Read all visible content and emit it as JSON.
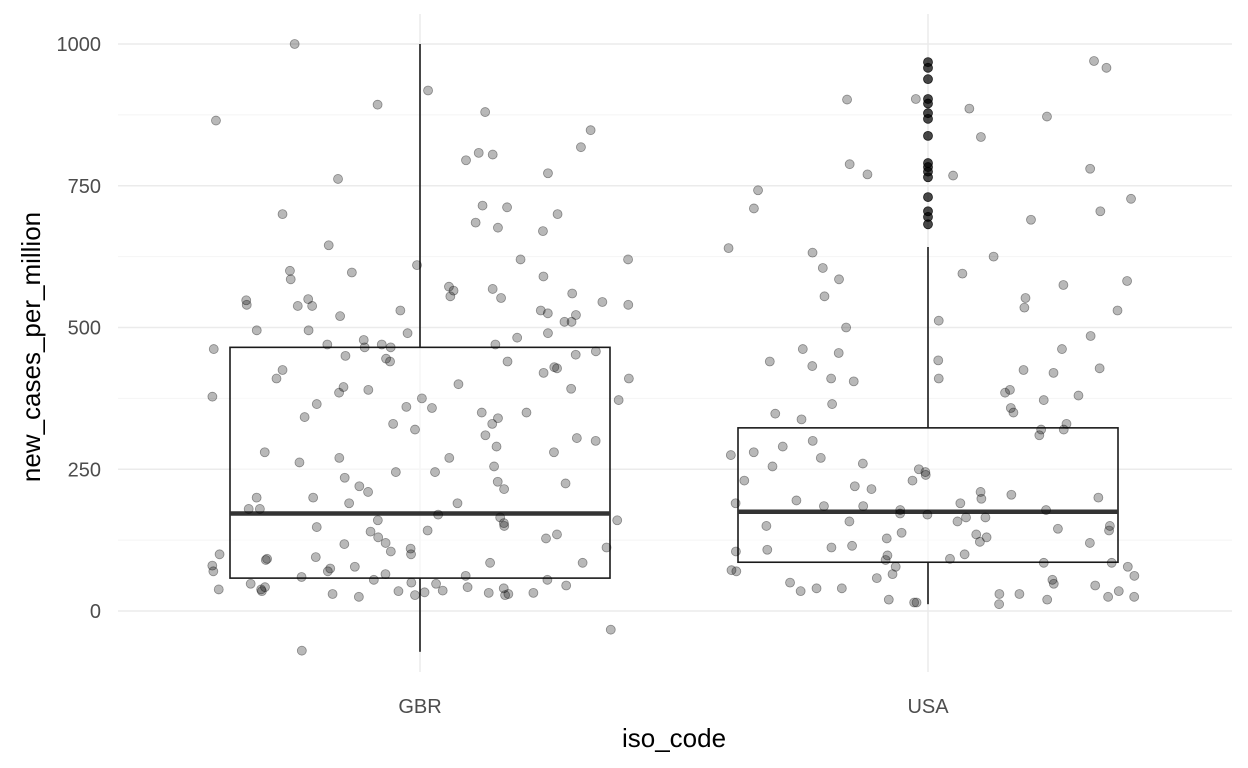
{
  "chart_data": {
    "type": "boxplot",
    "title": "",
    "xlabel": "iso_code",
    "ylabel": "new_cases_per_million",
    "ylim": [
      -75,
      1020
    ],
    "yticks": [
      0,
      250,
      500,
      750,
      1000
    ],
    "y_minor": [
      125,
      375,
      625,
      875
    ],
    "categories": [
      "GBR",
      "USA"
    ],
    "grid": true,
    "legend": "none",
    "boxes": [
      {
        "category": "GBR",
        "q1": 58,
        "median": 172,
        "q3": 465,
        "whisker_low": -72,
        "whisker_high": 1000,
        "outliers": []
      },
      {
        "category": "USA",
        "q1": 86,
        "median": 175,
        "q3": 323,
        "whisker_low": 12,
        "whisker_high": 642,
        "outliers": [
          968,
          958,
          938,
          903,
          895,
          878,
          868,
          838,
          790,
          783,
          775,
          765,
          730,
          705,
          695,
          682
        ]
      }
    ],
    "jitter": [
      {
        "category": "GBR",
        "values": [
          880,
          762,
          685,
          540,
          470,
          805,
          700,
          818,
          712,
          700,
          620,
          597,
          590,
          585,
          565,
          550,
          538,
          530,
          522,
          510,
          495,
          490,
          482,
          478,
          470,
          465,
          458,
          452,
          445,
          440,
          430,
          425,
          410,
          395,
          390,
          375,
          372,
          360,
          350,
          342,
          330,
          305,
          280,
          270,
          245,
          225,
          215,
          200,
          190,
          180,
          165,
          160,
          155,
          148,
          140,
          130,
          120,
          112,
          105,
          100,
          95,
          90,
          85,
          80,
          75,
          70,
          65,
          60,
          55,
          50,
          48,
          45,
          42,
          40,
          38,
          36,
          35,
          33,
          32,
          30,
          28,
          -33,
          1000,
          918,
          848,
          795,
          865,
          808,
          715,
          893,
          772,
          676,
          645,
          670,
          620,
          610,
          600,
          572,
          568,
          560,
          555,
          552,
          548,
          545,
          540,
          538,
          530,
          525,
          520,
          510,
          495,
          490,
          470,
          465,
          462,
          450,
          440,
          428,
          420,
          410,
          400,
          392,
          385,
          378,
          365,
          358,
          350,
          340,
          330,
          320,
          310,
          300,
          290,
          280,
          270,
          262,
          255,
          245,
          235,
          228,
          220,
          210,
          200,
          190,
          180,
          170,
          160,
          150,
          142,
          135,
          128,
          118,
          110,
          100,
          92,
          85,
          78,
          70,
          62,
          55,
          48,
          42,
          38,
          35,
          32,
          30,
          28,
          25,
          -70
        ]
      },
      {
        "category": "USA",
        "values": [
          903,
          958,
          788,
          742,
          780,
          770,
          727,
          632,
          605,
          595,
          582,
          555,
          552,
          500,
          462,
          455,
          442,
          425,
          410,
          390,
          385,
          365,
          348,
          320,
          275,
          255,
          245,
          230,
          215,
          205,
          198,
          190,
          185,
          178,
          172,
          165,
          158,
          150,
          142,
          135,
          128,
          120,
          112,
          105,
          98,
          90,
          85,
          78,
          72,
          65,
          58,
          50,
          45,
          40,
          35,
          30,
          25,
          20,
          15,
          12,
          970,
          902,
          872,
          886,
          836,
          768,
          710,
          705,
          690,
          640,
          625,
          585,
          575,
          535,
          530,
          512,
          485,
          462,
          440,
          432,
          428,
          420,
          410,
          405,
          380,
          372,
          358,
          350,
          338,
          330,
          320,
          310,
          300,
          290,
          280,
          270,
          260,
          250,
          240,
          230,
          220,
          210,
          200,
          195,
          190,
          185,
          178,
          170,
          165,
          158,
          150,
          145,
          138,
          130,
          122,
          115,
          108,
          100,
          92,
          85,
          78,
          70,
          62,
          55,
          48,
          40,
          35,
          30,
          25,
          20,
          15
        ]
      }
    ]
  }
}
